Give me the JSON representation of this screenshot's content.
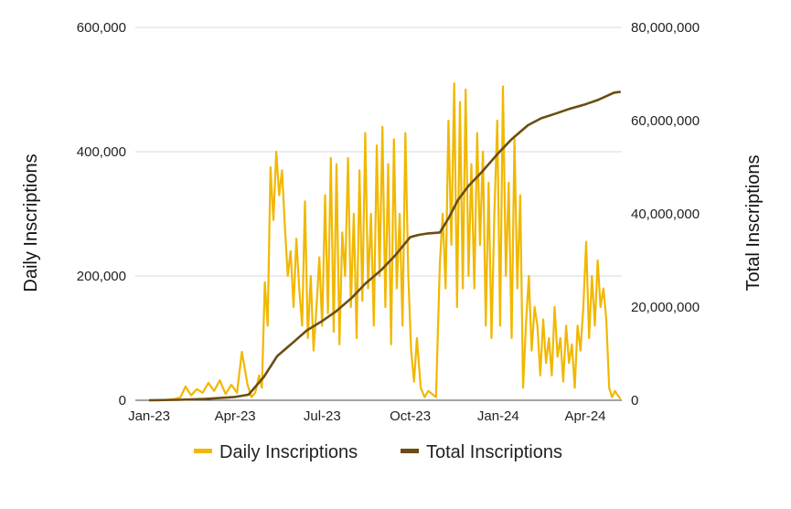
{
  "chart_data": {
    "type": "line",
    "title": "",
    "xlabel": "",
    "ylabel": "Daily Inscriptions",
    "y2label": "Total Inscriptions",
    "grid": true,
    "legend_placement": "bottom",
    "ylim": [
      0,
      600000
    ],
    "y2lim": [
      0,
      80000000
    ],
    "y_ticks": [
      "0",
      "200,000",
      "400,000",
      "600,000"
    ],
    "y2_ticks": [
      "0",
      "20,000,000",
      "40,000,000",
      "60,000,000",
      "80,000,000"
    ],
    "x_ticks": [
      {
        "label": "Jan-23",
        "date": "2023-01-01"
      },
      {
        "label": "Apr-23",
        "date": "2023-04-01"
      },
      {
        "label": "Jul-23",
        "date": "2023-07-01"
      },
      {
        "label": "Oct-23",
        "date": "2023-10-01"
      },
      {
        "label": "Jan-24",
        "date": "2024-01-01"
      },
      {
        "label": "Apr-24",
        "date": "2024-04-01"
      }
    ],
    "colors": {
      "daily": "#f1b800",
      "total": "#6b4c12"
    },
    "series": [
      {
        "name": "Daily Inscriptions",
        "axis": "left",
        "x": [
          "2023-01-01",
          "2023-01-15",
          "2023-01-28",
          "2023-02-03",
          "2023-02-08",
          "2023-02-14",
          "2023-02-20",
          "2023-02-26",
          "2023-03-04",
          "2023-03-10",
          "2023-03-16",
          "2023-03-22",
          "2023-03-28",
          "2023-04-03",
          "2023-04-08",
          "2023-04-14",
          "2023-04-18",
          "2023-04-22",
          "2023-04-26",
          "2023-04-29",
          "2023-05-02",
          "2023-05-05",
          "2023-05-08",
          "2023-05-11",
          "2023-05-14",
          "2023-05-17",
          "2023-05-20",
          "2023-05-23",
          "2023-05-26",
          "2023-05-29",
          "2023-06-01",
          "2023-06-04",
          "2023-06-07",
          "2023-06-10",
          "2023-06-13",
          "2023-06-16",
          "2023-06-19",
          "2023-06-22",
          "2023-06-25",
          "2023-06-28",
          "2023-07-01",
          "2023-07-04",
          "2023-07-07",
          "2023-07-10",
          "2023-07-13",
          "2023-07-16",
          "2023-07-19",
          "2023-07-22",
          "2023-07-25",
          "2023-07-28",
          "2023-07-31",
          "2023-08-03",
          "2023-08-06",
          "2023-08-09",
          "2023-08-12",
          "2023-08-15",
          "2023-08-18",
          "2023-08-21",
          "2023-08-24",
          "2023-08-27",
          "2023-08-30",
          "2023-09-02",
          "2023-09-05",
          "2023-09-08",
          "2023-09-11",
          "2023-09-14",
          "2023-09-17",
          "2023-09-20",
          "2023-09-23",
          "2023-09-26",
          "2023-09-29",
          "2023-10-02",
          "2023-10-05",
          "2023-10-08",
          "2023-10-12",
          "2023-10-16",
          "2023-10-20",
          "2023-10-24",
          "2023-10-28",
          "2023-11-01",
          "2023-11-04",
          "2023-11-07",
          "2023-11-10",
          "2023-11-13",
          "2023-11-16",
          "2023-11-19",
          "2023-11-22",
          "2023-11-25",
          "2023-11-28",
          "2023-12-01",
          "2023-12-04",
          "2023-12-07",
          "2023-12-10",
          "2023-12-13",
          "2023-12-16",
          "2023-12-19",
          "2023-12-22",
          "2023-12-25",
          "2023-12-28",
          "2023-12-31",
          "2024-01-03",
          "2024-01-06",
          "2024-01-09",
          "2024-01-12",
          "2024-01-15",
          "2024-01-18",
          "2024-01-21",
          "2024-01-24",
          "2024-01-27",
          "2024-01-30",
          "2024-02-02",
          "2024-02-05",
          "2024-02-08",
          "2024-02-11",
          "2024-02-14",
          "2024-02-17",
          "2024-02-20",
          "2024-02-23",
          "2024-02-26",
          "2024-02-29",
          "2024-03-03",
          "2024-03-06",
          "2024-03-09",
          "2024-03-12",
          "2024-03-15",
          "2024-03-18",
          "2024-03-21",
          "2024-03-24",
          "2024-03-27",
          "2024-03-30",
          "2024-04-02",
          "2024-04-05",
          "2024-04-08",
          "2024-04-11",
          "2024-04-14",
          "2024-04-17",
          "2024-04-20",
          "2024-04-23",
          "2024-04-26",
          "2024-04-29",
          "2024-05-02",
          "2024-05-05",
          "2024-05-08"
        ],
        "values": [
          0,
          0,
          2000,
          5000,
          22000,
          8000,
          18000,
          12000,
          28000,
          15000,
          32000,
          10000,
          25000,
          12000,
          78000,
          25000,
          5000,
          12000,
          40000,
          20000,
          190000,
          120000,
          375000,
          290000,
          400000,
          330000,
          370000,
          280000,
          200000,
          240000,
          150000,
          260000,
          180000,
          120000,
          320000,
          100000,
          200000,
          80000,
          150000,
          230000,
          120000,
          330000,
          140000,
          390000,
          110000,
          380000,
          90000,
          270000,
          200000,
          390000,
          150000,
          300000,
          100000,
          370000,
          160000,
          430000,
          180000,
          300000,
          120000,
          410000,
          200000,
          440000,
          150000,
          380000,
          90000,
          420000,
          180000,
          300000,
          120000,
          430000,
          200000,
          80000,
          30000,
          100000,
          20000,
          5000,
          15000,
          10000,
          5000,
          220000,
          300000,
          180000,
          450000,
          250000,
          510000,
          150000,
          480000,
          180000,
          500000,
          200000,
          380000,
          180000,
          430000,
          250000,
          400000,
          120000,
          350000,
          100000,
          300000,
          450000,
          120000,
          505000,
          200000,
          350000,
          100000,
          420000,
          180000,
          330000,
          20000,
          120000,
          200000,
          80000,
          150000,
          120000,
          40000,
          130000,
          60000,
          100000,
          40000,
          150000,
          70000,
          100000,
          30000,
          120000,
          60000,
          90000,
          20000,
          120000,
          80000,
          150000,
          255000,
          100000,
          200000,
          120000,
          225000,
          150000,
          180000,
          130000,
          20000,
          5000,
          15000,
          8000,
          2000
        ],
        "x_note": "",
        "_": ""
      },
      {
        "name": "Total Inscriptions",
        "axis": "right",
        "x": [
          "2023-01-01",
          "2023-02-01",
          "2023-03-01",
          "2023-04-01",
          "2023-04-15",
          "2023-05-01",
          "2023-05-15",
          "2023-06-01",
          "2023-06-15",
          "2023-07-01",
          "2023-07-15",
          "2023-08-01",
          "2023-08-15",
          "2023-09-01",
          "2023-09-15",
          "2023-10-01",
          "2023-10-10",
          "2023-10-20",
          "2023-11-01",
          "2023-11-10",
          "2023-11-20",
          "2023-12-01",
          "2023-12-15",
          "2024-01-01",
          "2024-01-15",
          "2024-02-01",
          "2024-02-15",
          "2024-03-01",
          "2024-03-15",
          "2024-04-01",
          "2024-04-15",
          "2024-05-01",
          "2024-05-08"
        ],
        "values": [
          0,
          100000,
          300000,
          700000,
          1200000,
          5000000,
          9500000,
          12500000,
          15000000,
          17000000,
          19000000,
          22000000,
          25000000,
          28000000,
          31000000,
          35000000,
          35500000,
          35800000,
          36000000,
          39000000,
          43000000,
          46000000,
          49000000,
          53000000,
          56000000,
          59000000,
          60500000,
          61500000,
          62500000,
          63500000,
          64500000,
          66000000,
          66200000
        ]
      }
    ]
  }
}
